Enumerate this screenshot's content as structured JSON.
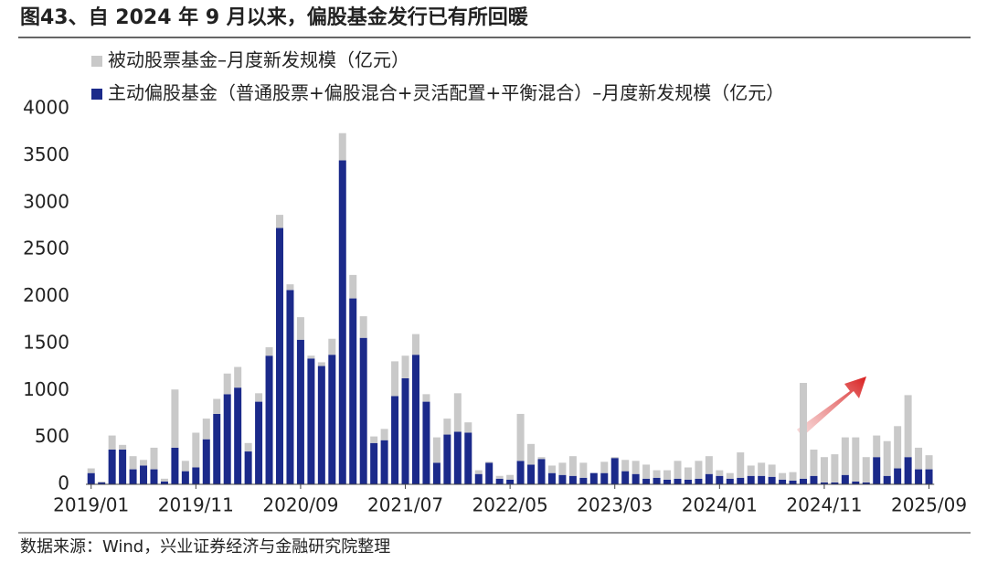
{
  "header": {
    "title": "图43、自 2024 年 9 月以来，偏股基金发行已有所回暖"
  },
  "chart_data": {
    "type": "stacked_bar",
    "categories": [
      "2019/01",
      null,
      null,
      null,
      null,
      null,
      null,
      null,
      null,
      null,
      "2019/11",
      null,
      null,
      null,
      null,
      null,
      null,
      null,
      null,
      null,
      "2020/09",
      null,
      null,
      null,
      null,
      null,
      null,
      null,
      null,
      null,
      "2021/07",
      null,
      null,
      null,
      null,
      null,
      null,
      null,
      null,
      null,
      "2022/05",
      null,
      null,
      null,
      null,
      null,
      null,
      null,
      null,
      null,
      "2023/03",
      null,
      null,
      null,
      null,
      null,
      null,
      null,
      null,
      null,
      "2024/01",
      null,
      null,
      null,
      null,
      null,
      null,
      null,
      null,
      null,
      "2024/11",
      null,
      null,
      null,
      null,
      null,
      null,
      null,
      null,
      null,
      "2025/09"
    ],
    "series": [
      {
        "name": "主动偏股基金（普通股票+偏股混合+灵活配置+平衡混合）–月度新发规模（亿元）",
        "color": "#1b2a8a",
        "values": [
          120,
          20,
          370,
          370,
          160,
          200,
          160,
          30,
          390,
          140,
          180,
          480,
          750,
          960,
          1030,
          350,
          880,
          1370,
          2730,
          2070,
          1540,
          1340,
          1260,
          1380,
          3450,
          1980,
          1560,
          440,
          470,
          940,
          1130,
          1380,
          880,
          230,
          530,
          560,
          550,
          110,
          230,
          60,
          50,
          250,
          210,
          270,
          120,
          100,
          90,
          70,
          120,
          120,
          280,
          140,
          110,
          60,
          70,
          50,
          60,
          50,
          60,
          110,
          90,
          60,
          70,
          90,
          90,
          80,
          50,
          40,
          60,
          90,
          20,
          20,
          100,
          30,
          20,
          290,
          90,
          170,
          290,
          160,
          160
        ]
      },
      {
        "name": "被动股票基金–月度新发规模（亿元）",
        "color": "#c9c9c9",
        "values": [
          50,
          10,
          150,
          50,
          140,
          60,
          230,
          30,
          620,
          110,
          370,
          220,
          160,
          220,
          220,
          90,
          90,
          90,
          140,
          60,
          240,
          30,
          40,
          170,
          290,
          250,
          230,
          70,
          120,
          370,
          240,
          220,
          80,
          270,
          170,
          410,
          110,
          40,
          10,
          30,
          50,
          500,
          220,
          20,
          80,
          130,
          210,
          160,
          0,
          120,
          10,
          120,
          140,
          150,
          80,
          100,
          190,
          130,
          190,
          190,
          60,
          60,
          270,
          110,
          140,
          130,
          70,
          90,
          1020,
          280,
          270,
          300,
          400,
          470,
          270,
          230,
          370,
          450,
          660,
          230,
          150
        ]
      }
    ],
    "ylim": [
      0,
      4000
    ],
    "yticks": [
      0,
      500,
      1000,
      1500,
      2000,
      2500,
      3000,
      3500,
      4000
    ],
    "grid": false
  },
  "footer": {
    "source": "数据来源：Wind，兴业证券经济与金融研究院整理"
  }
}
